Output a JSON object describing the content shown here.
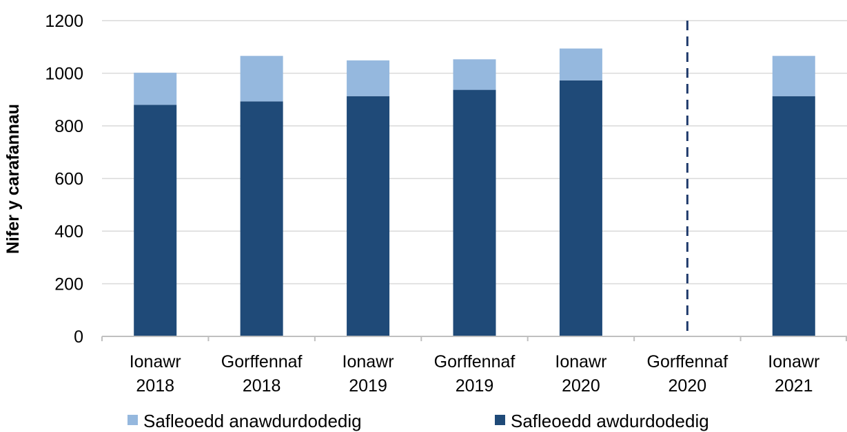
{
  "chart_data": {
    "type": "bar",
    "stacked": true,
    "title": "",
    "xlabel": "",
    "ylabel": "Nifer y carafannau",
    "ylim": [
      0,
      1200
    ],
    "yticks": [
      0,
      200,
      400,
      600,
      800,
      1000,
      1200
    ],
    "grid": "horizontal",
    "legend_position": "bottom",
    "categories": [
      [
        "Ionawr",
        "2018"
      ],
      [
        "Gorffennaf",
        "2018"
      ],
      [
        "Ionawr",
        "2019"
      ],
      [
        "Gorffennaf",
        "2019"
      ],
      [
        "Ionawr",
        "2020"
      ],
      [
        "Gorffennaf",
        "2020"
      ],
      [
        "Ionawr",
        "2021"
      ]
    ],
    "series": [
      {
        "name": "Safleoedd awdurdodedig",
        "color": "#1f4a78",
        "values": [
          880,
          893,
          913,
          937,
          973,
          null,
          913
        ]
      },
      {
        "name": "Safleoedd anawdurdodedig",
        "color": "#95b8de",
        "values": [
          122,
          173,
          136,
          116,
          121,
          null,
          153
        ]
      }
    ],
    "legend_order": [
      "Safleoedd anawdurdodedig",
      "Safleoedd awdurdodedig"
    ],
    "annotations": [
      {
        "type": "dashed-vertical-line",
        "category_index": 5,
        "color": "#1f3a6b"
      }
    ]
  }
}
